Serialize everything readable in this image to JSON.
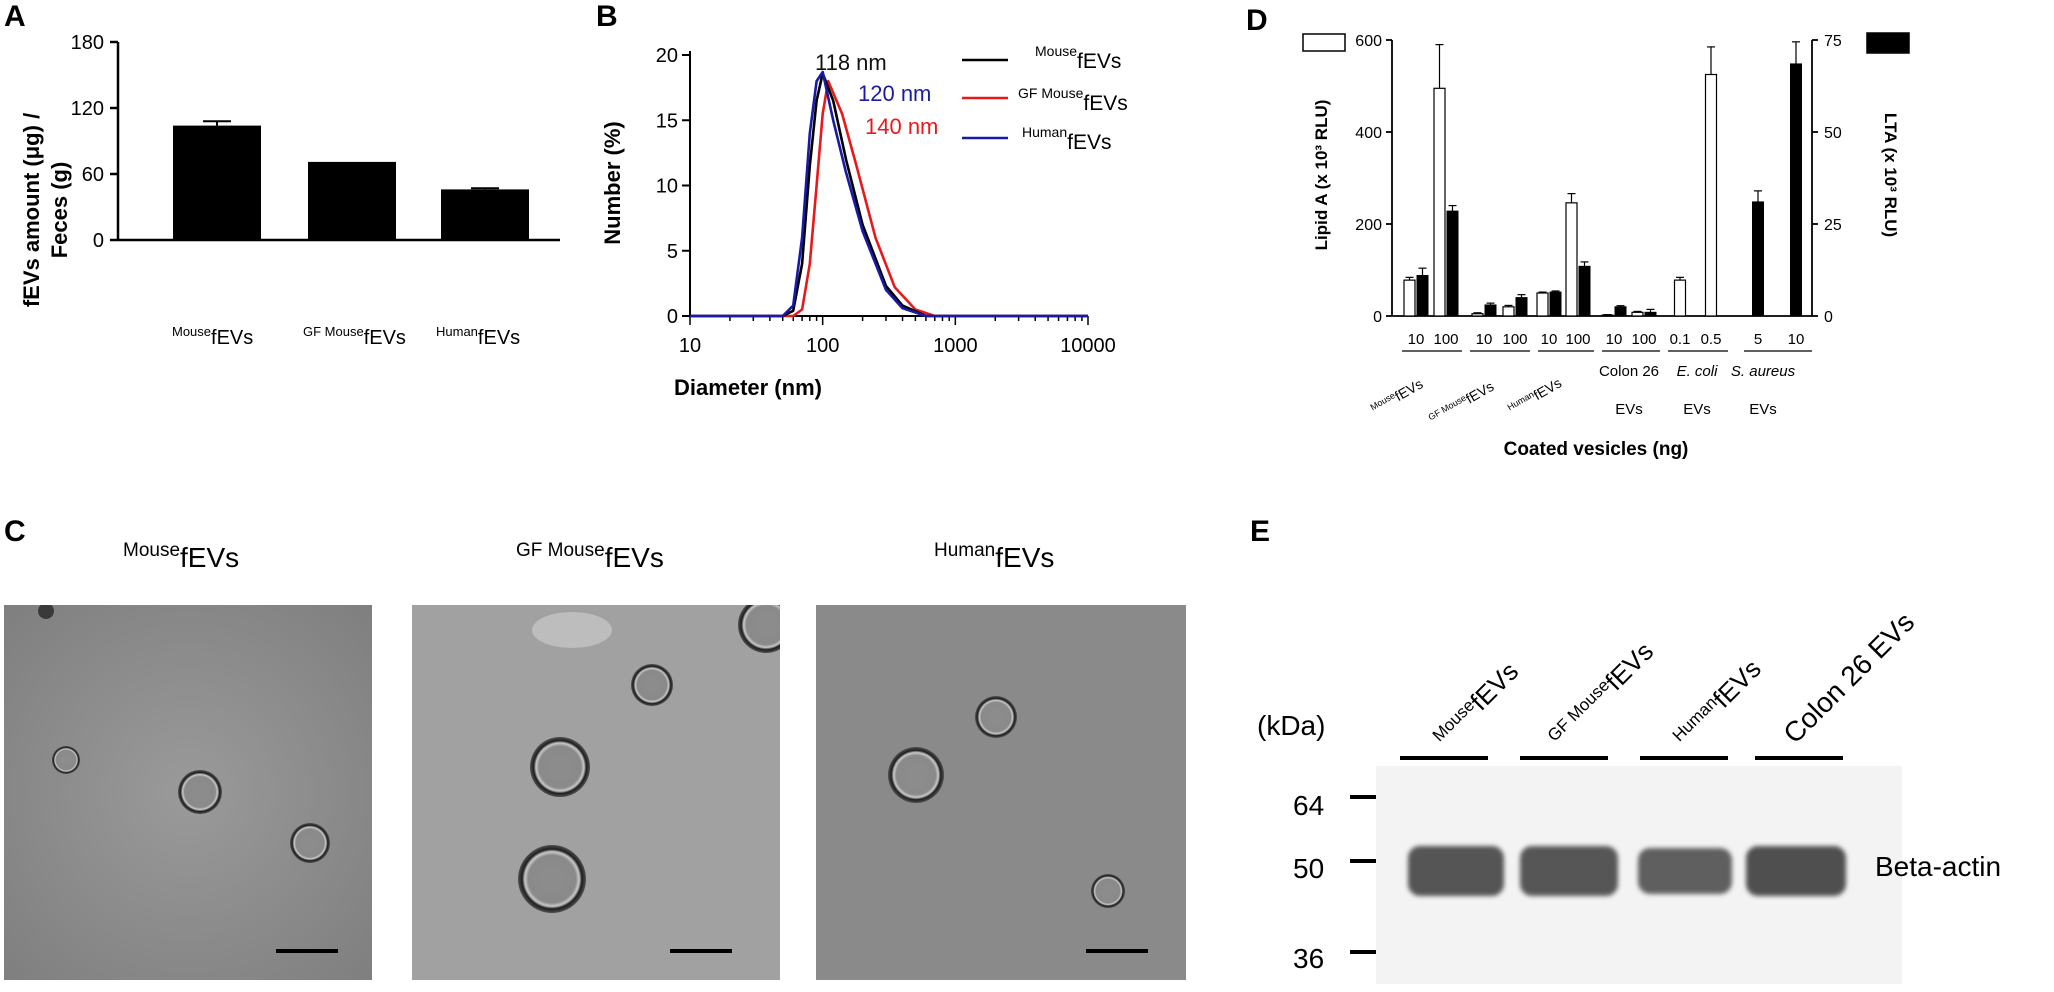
{
  "panels": {
    "a": "A",
    "b": "B",
    "c": "C",
    "d": "D",
    "e": "E"
  },
  "colors": {
    "mouse": "#000000",
    "gf_mouse": "#e8191a",
    "human": "#1a1aa6",
    "bar": "#000000",
    "open_bar": "#ffffff"
  },
  "panelA": {
    "ylabel_line1": "fEVs amount (μg) /",
    "ylabel_line2": "Feces (g)",
    "yticks": [
      "0",
      "60",
      "120",
      "180"
    ],
    "xlabels": [
      {
        "sup": "Mouse",
        "main": "fEVs"
      },
      {
        "sup": "GF Mouse",
        "main": "fEVs"
      },
      {
        "sup": "Human",
        "main": "fEVs"
      }
    ]
  },
  "panelB": {
    "ylabel": "Number (%)",
    "xlabel": "Diameter (nm)",
    "yticks": [
      "0",
      "5",
      "10",
      "15",
      "20"
    ],
    "xticks": [
      "10",
      "100",
      "1000",
      "10000"
    ],
    "annotations": [
      "118 nm",
      "120 nm",
      "140 nm"
    ],
    "legend": [
      {
        "sup": "Mouse",
        "main": "fEVs"
      },
      {
        "sup": "GF Mouse",
        "main": "fEVs"
      },
      {
        "sup": "Human",
        "main": "fEVs"
      }
    ]
  },
  "panelC": {
    "labels": [
      {
        "sup": "Mouse",
        "main": "fEVs"
      },
      {
        "sup": "GF Mouse",
        "main": "fEVs"
      },
      {
        "sup": "Human",
        "main": "fEVs"
      }
    ]
  },
  "panelD": {
    "ylabel_left": "Lipid A (x 10³ RLU)",
    "ylabel_right": "LTA (x 10³ RLU)",
    "xlabel": "Coated vesicles (ng)",
    "yticks_left": [
      "0",
      "200",
      "400",
      "600"
    ],
    "yticks_right": [
      "0",
      "25",
      "50",
      "75"
    ],
    "doses": [
      "10",
      "100",
      "10",
      "100",
      "10",
      "100",
      "10",
      "100",
      "0.1",
      "0.5",
      "5",
      "10"
    ],
    "groups": [
      {
        "sup": "Mouse",
        "main": "fEVs"
      },
      {
        "sup": "GF Mouse",
        "main": "fEVs"
      },
      {
        "sup": "Human",
        "main": "fEVs"
      },
      {
        "line1": "Colon 26",
        "line2": "EVs"
      },
      {
        "line1": "E. coli",
        "line2": "EVs"
      },
      {
        "line1": "S. aureus",
        "line2": "EVs"
      }
    ]
  },
  "panelE": {
    "unit": "(kDa)",
    "markers": [
      "64",
      "50",
      "36"
    ],
    "lanes": [
      {
        "sup": "Mouse",
        "main": "fEVs"
      },
      {
        "sup": "GF Mouse",
        "main": "fEVs"
      },
      {
        "sup": "Human",
        "main": "fEVs"
      },
      {
        "sup": "",
        "main": "Colon 26 EVs"
      }
    ],
    "band_label": "Beta-actin"
  },
  "chart_data": [
    {
      "panel": "A",
      "type": "bar",
      "categories": [
        "MousefEVs",
        "GF MousefEVs",
        "HumanfEVs"
      ],
      "values": [
        104,
        71,
        46
      ],
      "errors": [
        4,
        0,
        1
      ],
      "ylabel": "fEVs amount (μg) / Feces (g)",
      "ylim": [
        0,
        180
      ],
      "yticks": [
        0,
        60,
        120,
        180
      ]
    },
    {
      "panel": "B",
      "type": "line",
      "xscale": "log",
      "xlim": [
        10,
        10000
      ],
      "ylim": [
        0,
        20
      ],
      "xlabel": "Diameter (nm)",
      "ylabel": "Number (%)",
      "series": [
        {
          "name": "MousefEVs",
          "x": [
            10,
            50,
            60,
            70,
            80,
            90,
            100,
            120,
            150,
            200,
            300,
            400,
            600,
            10000
          ],
          "y": [
            0,
            0,
            0.4,
            4,
            11.5,
            16.5,
            18.6,
            16.5,
            12,
            7,
            2.3,
            0.8,
            0,
            0
          ]
        },
        {
          "name": "GF MousefEVs",
          "x": [
            10,
            60,
            70,
            80,
            90,
            100,
            110,
            140,
            180,
            250,
            350,
            500,
            700,
            10000
          ],
          "y": [
            0,
            0,
            0.5,
            4,
            10,
            15.5,
            18,
            15.5,
            11.5,
            6,
            2.2,
            0.5,
            0,
            0
          ]
        },
        {
          "name": "HumanfEVs",
          "x": [
            10,
            50,
            60,
            70,
            80,
            90,
            100,
            120,
            150,
            200,
            300,
            400,
            600,
            10000
          ],
          "y": [
            0,
            0,
            0.8,
            6,
            14,
            18,
            18.7,
            15,
            11,
            6.5,
            2,
            0.6,
            0,
            0
          ]
        }
      ],
      "annotations": [
        "118 nm",
        "120 nm",
        "140 nm"
      ]
    },
    {
      "panel": "D",
      "type": "bar",
      "categories": [
        "10",
        "100",
        "10",
        "100",
        "10",
        "100",
        "10",
        "100",
        "0.1",
        "0.5",
        "5",
        "10"
      ],
      "groups": [
        "MousefEVs",
        "GF MousefEVs",
        "HumanfEVs",
        "Colon 26 EVs",
        "E. coli EVs",
        "S. aureus EVs"
      ],
      "xlabel": "Coated vesicles (ng)",
      "series": [
        {
          "name": "Lipid A",
          "axis": "left",
          "values": [
            78,
            495,
            5,
            20,
            50,
            246,
            2,
            8,
            78,
            525,
            null,
            null
          ],
          "errors": [
            6,
            95,
            2,
            3,
            2,
            20,
            1,
            2,
            6,
            60,
            null,
            null
          ]
        },
        {
          "name": "LTA",
          "axis": "right",
          "values": [
            11,
            28.5,
            3,
            5,
            6.5,
            13.5,
            2.5,
            1,
            null,
            null,
            31,
            68.5
          ],
          "errors": [
            2,
            1.5,
            0.5,
            0.8,
            0.3,
            1.2,
            0.3,
            0.8,
            null,
            null,
            3,
            6
          ]
        }
      ],
      "ylim_left": [
        0,
        600
      ],
      "ylim_right": [
        0,
        75
      ],
      "ylabel_left": "Lipid A (x 10³ RLU)",
      "ylabel_right": "LTA (x 10³ RLU)"
    }
  ]
}
